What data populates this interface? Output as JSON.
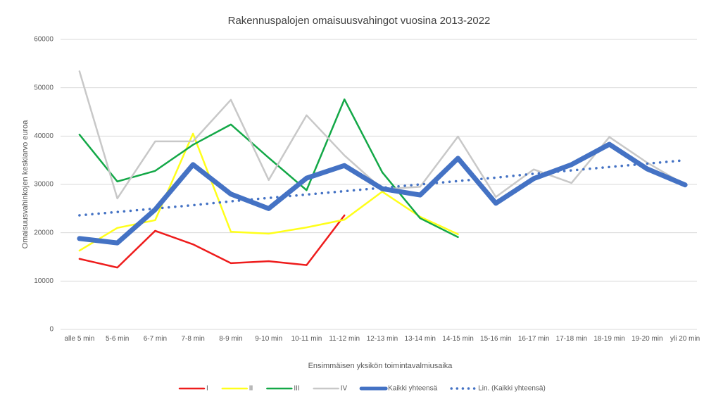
{
  "chart_data": {
    "type": "line",
    "title": "Rakennuspalojen omaisuusvahingot vuosina 2013-2022",
    "x_label": "Ensimmäisen yksikön toimintavalmiusaika",
    "y_label": "Omaisuusvahinkojen keskiarvo euroa",
    "categories": [
      "alle 5 min",
      "5-6 min",
      "6-7 min",
      "7-8 min",
      "8-9 min",
      "9-10 min",
      "10-11 min",
      "11-12 min",
      "12-13 min",
      "13-14 min",
      "14-15 min",
      "15-16 min",
      "16-17 min",
      "17-18 min",
      "18-19 min",
      "19-20 min",
      "yli 20 min"
    ],
    "ylim": [
      0,
      60000
    ],
    "yticks": [
      0,
      10000,
      20000,
      30000,
      40000,
      50000,
      60000
    ],
    "grid": true,
    "legend": "bottom",
    "series": [
      {
        "name": "I",
        "color": "#ee1c1c",
        "line_width": 2.5,
        "dotted": false,
        "values": [
          14600,
          12800,
          20400,
          17600,
          13700,
          14100,
          13300,
          23600,
          null,
          null,
          null,
          null,
          null,
          null,
          null,
          null,
          null
        ]
      },
      {
        "name": "II",
        "color": "#ffff1a",
        "line_width": 2.5,
        "dotted": false,
        "values": [
          16300,
          21000,
          22600,
          40500,
          20200,
          19800,
          21100,
          22700,
          28500,
          23300,
          19700,
          null,
          null,
          null,
          null,
          null,
          null
        ]
      },
      {
        "name": "III",
        "color": "#13a847",
        "line_width": 2.5,
        "dotted": false,
        "values": [
          40300,
          30600,
          32800,
          38200,
          42400,
          35500,
          28800,
          47600,
          32500,
          23000,
          19100,
          null,
          null,
          null,
          null,
          null,
          null
        ]
      },
      {
        "name": "IV",
        "color": "#c8c8c8",
        "line_width": 2.5,
        "dotted": false,
        "values": [
          53400,
          27100,
          38900,
          38900,
          47500,
          30900,
          44300,
          36000,
          29000,
          29500,
          39900,
          27400,
          33100,
          30300,
          39800,
          34500,
          29900
        ]
      },
      {
        "name": "Kaikki yhteensä",
        "color": "#4472c4",
        "line_width": 7,
        "dotted": false,
        "values": [
          18800,
          17900,
          24800,
          34100,
          28000,
          25000,
          31300,
          33900,
          29100,
          27800,
          35400,
          26100,
          31200,
          34100,
          38300,
          33200,
          29900
        ]
      },
      {
        "name": "Lin. (Kaikki yhteensä)",
        "color": "#4472c4",
        "line_width": 3.5,
        "dotted": true,
        "values": [
          23600,
          24300,
          25000,
          25700,
          26500,
          27200,
          27900,
          28600,
          29300,
          30000,
          30700,
          31400,
          32200,
          32900,
          33600,
          34300,
          35000
        ]
      }
    ]
  }
}
